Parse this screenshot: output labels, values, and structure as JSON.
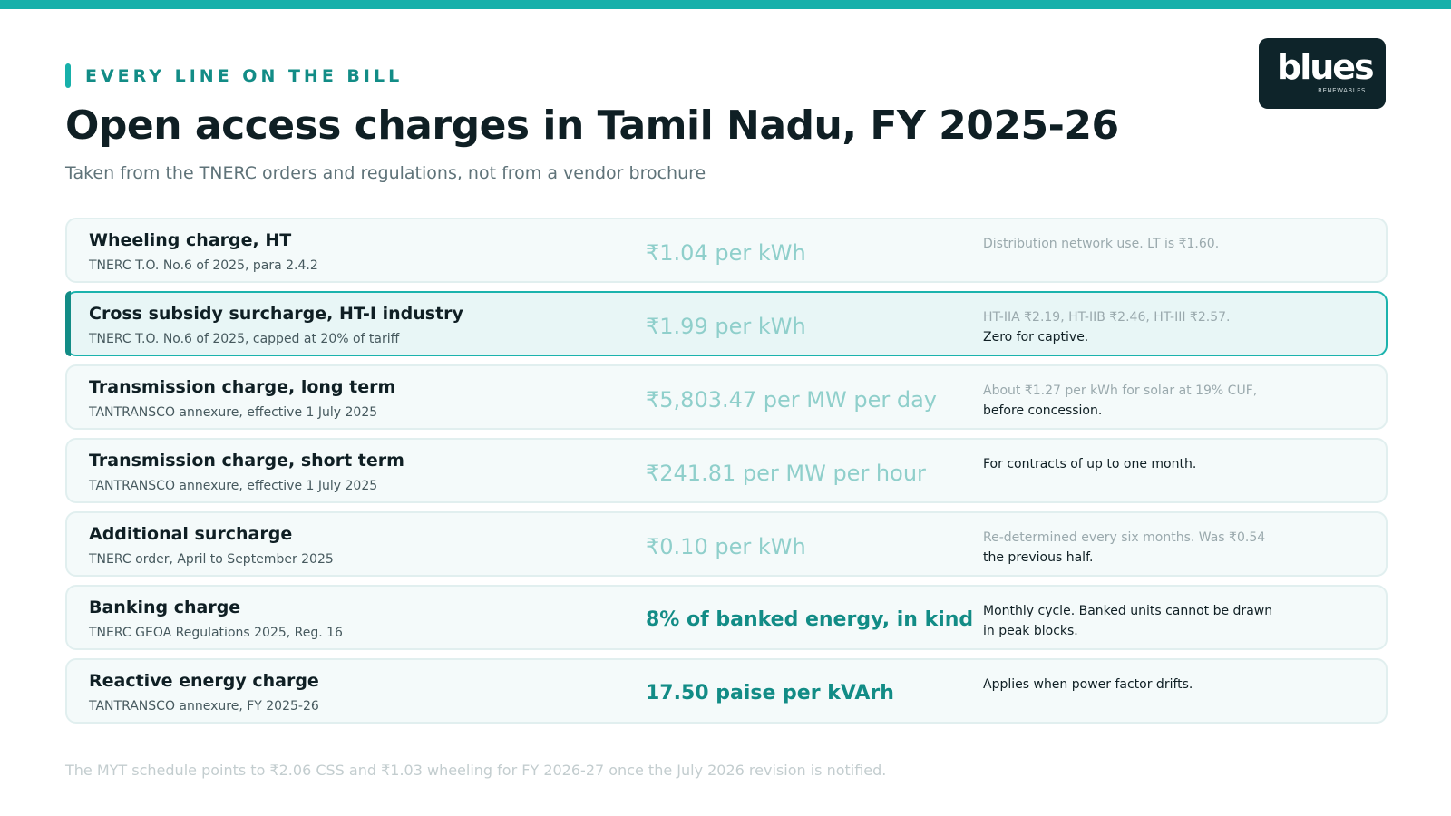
{
  "eyebrow": "EVERY LINE ON THE BILL",
  "title": "Open access charges in Tamil Nadu, FY 2025-26",
  "subtitle": "Taken from the TNERC orders and regulations, not from a vendor brochure",
  "logo": {
    "word": "blues",
    "sub": "RENEWABLES"
  },
  "rows": [
    {
      "name": "Wheeling charge, HT",
      "source": "TNERC T.O. No.6 of 2025, para 2.4.2",
      "value": "₹1.04 per kWh",
      "note_line1": "Distribution network use. LT is ₹1.60.",
      "note_line2": ""
    },
    {
      "name": "Cross subsidy surcharge, HT-I industry",
      "source": "TNERC T.O. No.6 of 2025, capped at 20% of tariff",
      "value": "₹1.99 per kWh",
      "note_line1": "HT-IIA ₹2.19, HT-IIB ₹2.46, HT-III ₹2.57.",
      "note_line2": "Zero for captive."
    },
    {
      "name": "Transmission charge, long term",
      "source": "TANTRANSCO annexure, effective 1 July 2025",
      "value": "₹5,803.47 per MW per day",
      "note_line1": "About ₹1.27 per kWh for solar at 19% CUF,",
      "note_line2": "before concession."
    },
    {
      "name": "Transmission charge, short term",
      "source": "TANTRANSCO annexure, effective 1 July 2025",
      "value": "₹241.81 per MW per hour",
      "note_line1": "For contracts of up to one month.",
      "note_line2": ""
    },
    {
      "name": "Additional surcharge",
      "source": "TNERC order, April to September 2025",
      "value": "₹0.10 per kWh",
      "note_line1": "Re-determined every six months. Was ₹0.54",
      "note_line2": "the previous half."
    },
    {
      "name": "Banking charge",
      "source": "TNERC GEOA Regulations 2025, Reg. 16",
      "value": "8% of banked energy, in kind",
      "note_line1": "Monthly cycle. Banked units cannot be drawn",
      "note_line2": "in peak blocks."
    },
    {
      "name": "Reactive energy charge",
      "source": "TANTRANSCO annexure, FY 2025-26",
      "value": "17.50 paise per kVArh",
      "note_line1": "Applies when power factor drifts.",
      "note_line2": ""
    }
  ],
  "footnote": "The MYT schedule points to ₹2.06 CSS and ₹1.03 wheeling for FY 2026-27 once the July 2026 revision is notified."
}
